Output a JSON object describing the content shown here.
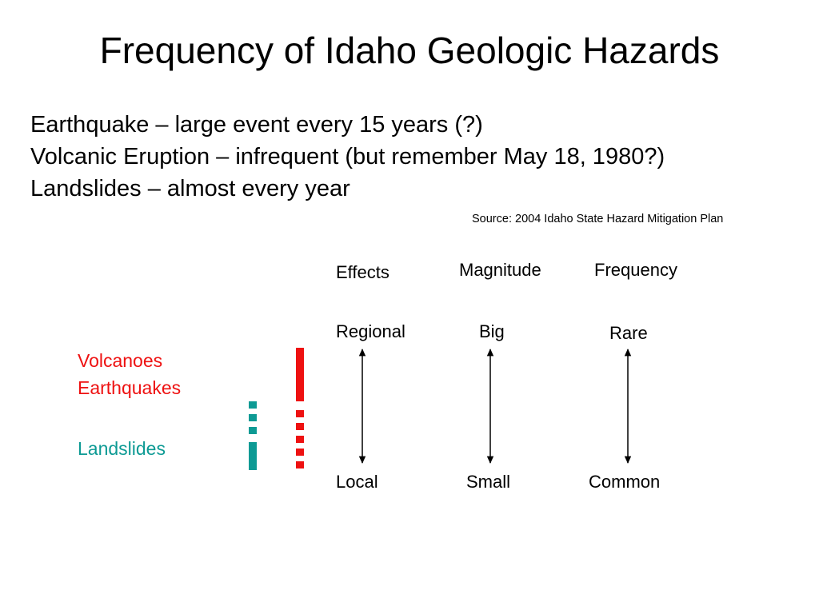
{
  "title": "Frequency of Idaho Geologic Hazards",
  "lines": [
    "Earthquake – large event every 15 years (?)",
    "Volcanic Eruption – infrequent (but remember May 18, 1980?)",
    "Landslides – almost every year"
  ],
  "source": "Source: 2004 Idaho State Hazard Mitigation Plan",
  "columns": [
    {
      "header": "Effects",
      "top": "Regional",
      "bottom": "Local"
    },
    {
      "header": "Magnitude",
      "top": "Big",
      "bottom": "Small"
    },
    {
      "header": "Frequency",
      "top": "Rare",
      "bottom": "Common"
    }
  ],
  "hazards": {
    "volcanoes": "Volcanoes",
    "earthquakes": "Earthquakes",
    "landslides": "Landslides"
  },
  "colors": {
    "volcano_quake": "#ee1111",
    "landslide": "#0d9a94",
    "arrow": "#000000"
  }
}
